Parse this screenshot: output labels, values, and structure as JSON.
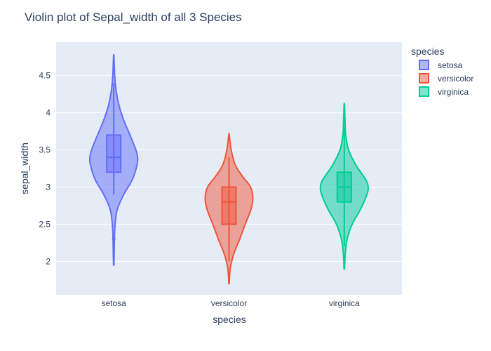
{
  "chart_data": {
    "type": "violin",
    "title": "Violin plot of Sepal_width of all 3 Species",
    "xlabel": "species",
    "ylabel": "sepal_width",
    "ylim": [
      1.55,
      4.95
    ],
    "yticks": [
      2,
      2.5,
      3,
      3.5,
      4,
      4.5
    ],
    "ytick_labels": [
      "2",
      "2.5",
      "3",
      "3.5",
      "4",
      "4.5"
    ],
    "categories": [
      "setosa",
      "versicolor",
      "virginica"
    ],
    "grid": true,
    "legend": {
      "title": "species",
      "placement": "top-right"
    },
    "series": [
      {
        "name": "setosa",
        "color": "#636efa",
        "range": [
          1.95,
          4.75
        ],
        "box": {
          "min": 2.9,
          "q1": 3.2,
          "median": 3.4,
          "q3": 3.7,
          "max": 4.4
        },
        "outliers": [
          2.3
        ],
        "density": [
          [
            1.95,
            0.01
          ],
          [
            2.1,
            0.02
          ],
          [
            2.3,
            0.03
          ],
          [
            2.5,
            0.06
          ],
          [
            2.7,
            0.15
          ],
          [
            2.9,
            0.42
          ],
          [
            3.1,
            0.78
          ],
          [
            3.3,
            0.98
          ],
          [
            3.4,
            1.0
          ],
          [
            3.5,
            0.93
          ],
          [
            3.7,
            0.68
          ],
          [
            3.9,
            0.42
          ],
          [
            4.1,
            0.22
          ],
          [
            4.3,
            0.1
          ],
          [
            4.5,
            0.04
          ],
          [
            4.75,
            0.01
          ]
        ]
      },
      {
        "name": "versicolor",
        "color": "#ef553b",
        "range": [
          1.7,
          3.7
        ],
        "box": {
          "min": 2.0,
          "q1": 2.5,
          "median": 2.8,
          "q3": 3.0,
          "max": 3.4
        },
        "outliers": [],
        "density": [
          [
            1.7,
            0.01
          ],
          [
            1.9,
            0.05
          ],
          [
            2.1,
            0.2
          ],
          [
            2.3,
            0.45
          ],
          [
            2.5,
            0.68
          ],
          [
            2.7,
            0.92
          ],
          [
            2.85,
            1.0
          ],
          [
            3.0,
            0.9
          ],
          [
            3.15,
            0.55
          ],
          [
            3.3,
            0.26
          ],
          [
            3.5,
            0.09
          ],
          [
            3.7,
            0.01
          ]
        ]
      },
      {
        "name": "virginica",
        "color": "#00cc96",
        "range": [
          1.9,
          4.1
        ],
        "box": {
          "min": 2.2,
          "q1": 2.8,
          "median": 3.0,
          "q3": 3.2,
          "max": 3.8
        },
        "outliers": [],
        "density": [
          [
            1.9,
            0.01
          ],
          [
            2.1,
            0.04
          ],
          [
            2.3,
            0.12
          ],
          [
            2.5,
            0.33
          ],
          [
            2.7,
            0.68
          ],
          [
            2.9,
            0.95
          ],
          [
            3.0,
            1.0
          ],
          [
            3.1,
            0.9
          ],
          [
            3.3,
            0.48
          ],
          [
            3.5,
            0.18
          ],
          [
            3.7,
            0.06
          ],
          [
            3.9,
            0.03
          ],
          [
            4.1,
            0.01
          ]
        ]
      }
    ]
  }
}
